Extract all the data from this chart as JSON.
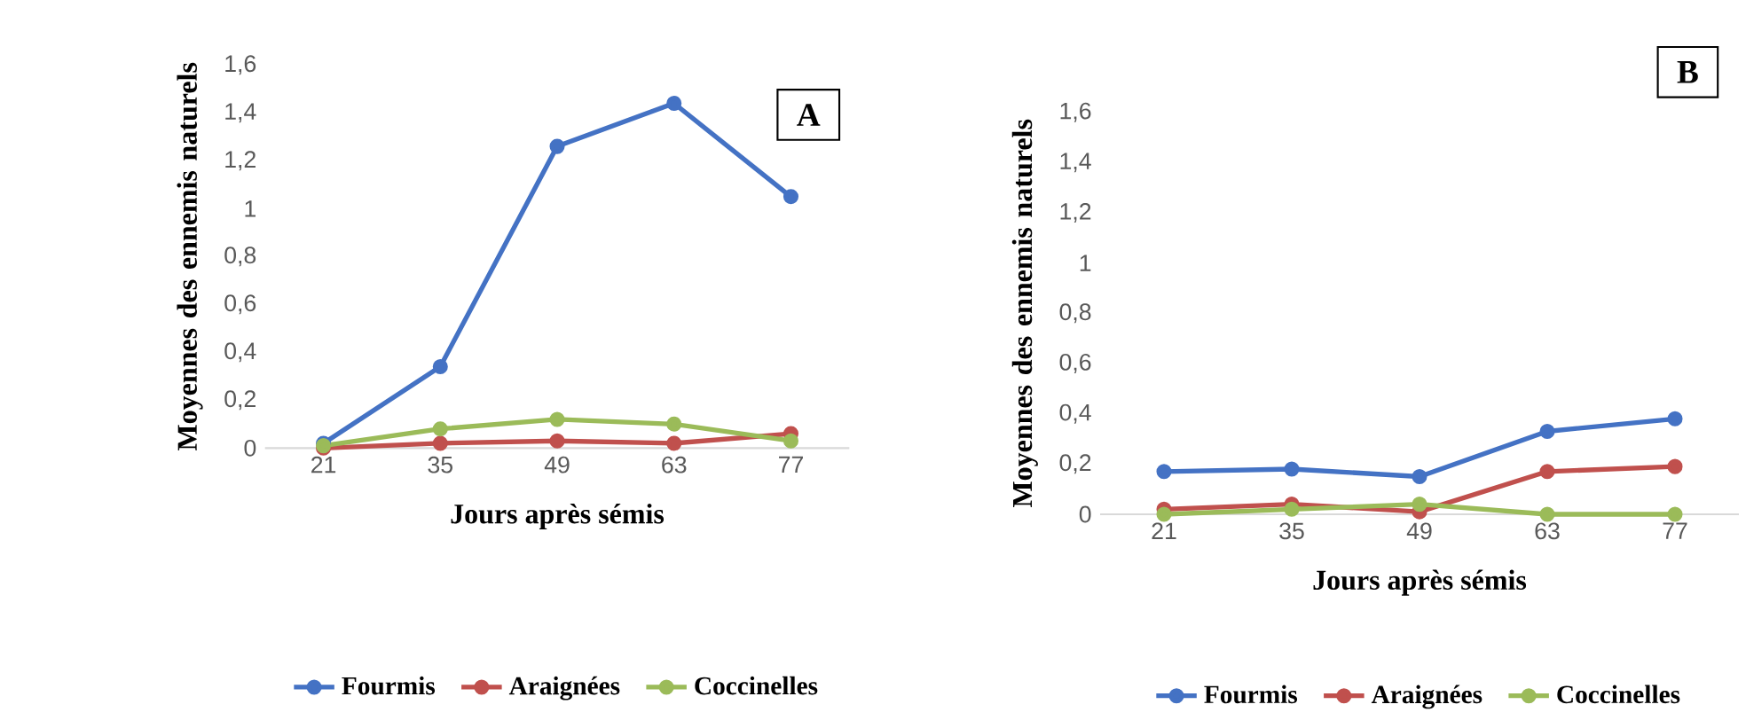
{
  "chart_data": [
    {
      "type": "line",
      "xlabel": "Jours après sémis",
      "ylabel": "Moyennes des ennemis naturels",
      "categories": [
        "21",
        "35",
        "49",
        "63",
        "77"
      ],
      "ylim": [
        0,
        1.6
      ],
      "yticks": [
        0,
        {
          "value": 0.2,
          "label": "0,2"
        },
        {
          "value": 0.4,
          "label": "0,4"
        },
        {
          "value": 0.6,
          "label": "0,6"
        },
        {
          "value": 0.8,
          "label": "0,8"
        },
        1,
        {
          "value": 1.2,
          "label": "1,2"
        },
        {
          "value": 1.4,
          "label": "1,4"
        },
        {
          "value": 1.6,
          "label": "1,6"
        }
      ],
      "grid": false,
      "legend": "bottom",
      "marker": "circle",
      "annotations": [
        "A"
      ],
      "series": [
        {
          "name": "Fourmis",
          "color": "#4472c4",
          "values": [
            0.02,
            0.34,
            1.26,
            1.44,
            1.05
          ]
        },
        {
          "name": "Araignées",
          "color": "#c0504d",
          "values": [
            0,
            0.02,
            0.03,
            0.02,
            0.06
          ]
        },
        {
          "name": "Coccinelles",
          "color": "#9bbb59",
          "values": [
            0.01,
            0.08,
            0.12,
            0.1,
            0.03
          ]
        }
      ]
    },
    {
      "type": "line",
      "xlabel": "Jours après sémis",
      "ylabel": "Moyennes des ennemis naturels",
      "categories": [
        "21",
        "35",
        "49",
        "63",
        "77"
      ],
      "ylim": [
        0,
        1.6
      ],
      "yticks": [
        0,
        {
          "value": 0.2,
          "label": "0,2"
        },
        {
          "value": 0.4,
          "label": "0,4"
        },
        {
          "value": 0.6,
          "label": "0,6"
        },
        {
          "value": 0.8,
          "label": "0,8"
        },
        1,
        {
          "value": 1.2,
          "label": "1,2"
        },
        {
          "value": 1.4,
          "label": "1,4"
        },
        {
          "value": 1.6,
          "label": "1,6"
        }
      ],
      "grid": false,
      "legend": "bottom",
      "marker": "circle",
      "annotations": [
        "B"
      ],
      "series": [
        {
          "name": "Fourmis",
          "color": "#4472c4",
          "values": [
            0.17,
            0.18,
            0.15,
            0.33,
            0.38
          ]
        },
        {
          "name": "Araignées",
          "color": "#c0504d",
          "values": [
            0.02,
            0.04,
            0.01,
            0.17,
            0.19
          ]
        },
        {
          "name": "Coccinelles",
          "color": "#9bbb59",
          "values": [
            0,
            0.02,
            0.04,
            0,
            0
          ]
        }
      ]
    }
  ]
}
